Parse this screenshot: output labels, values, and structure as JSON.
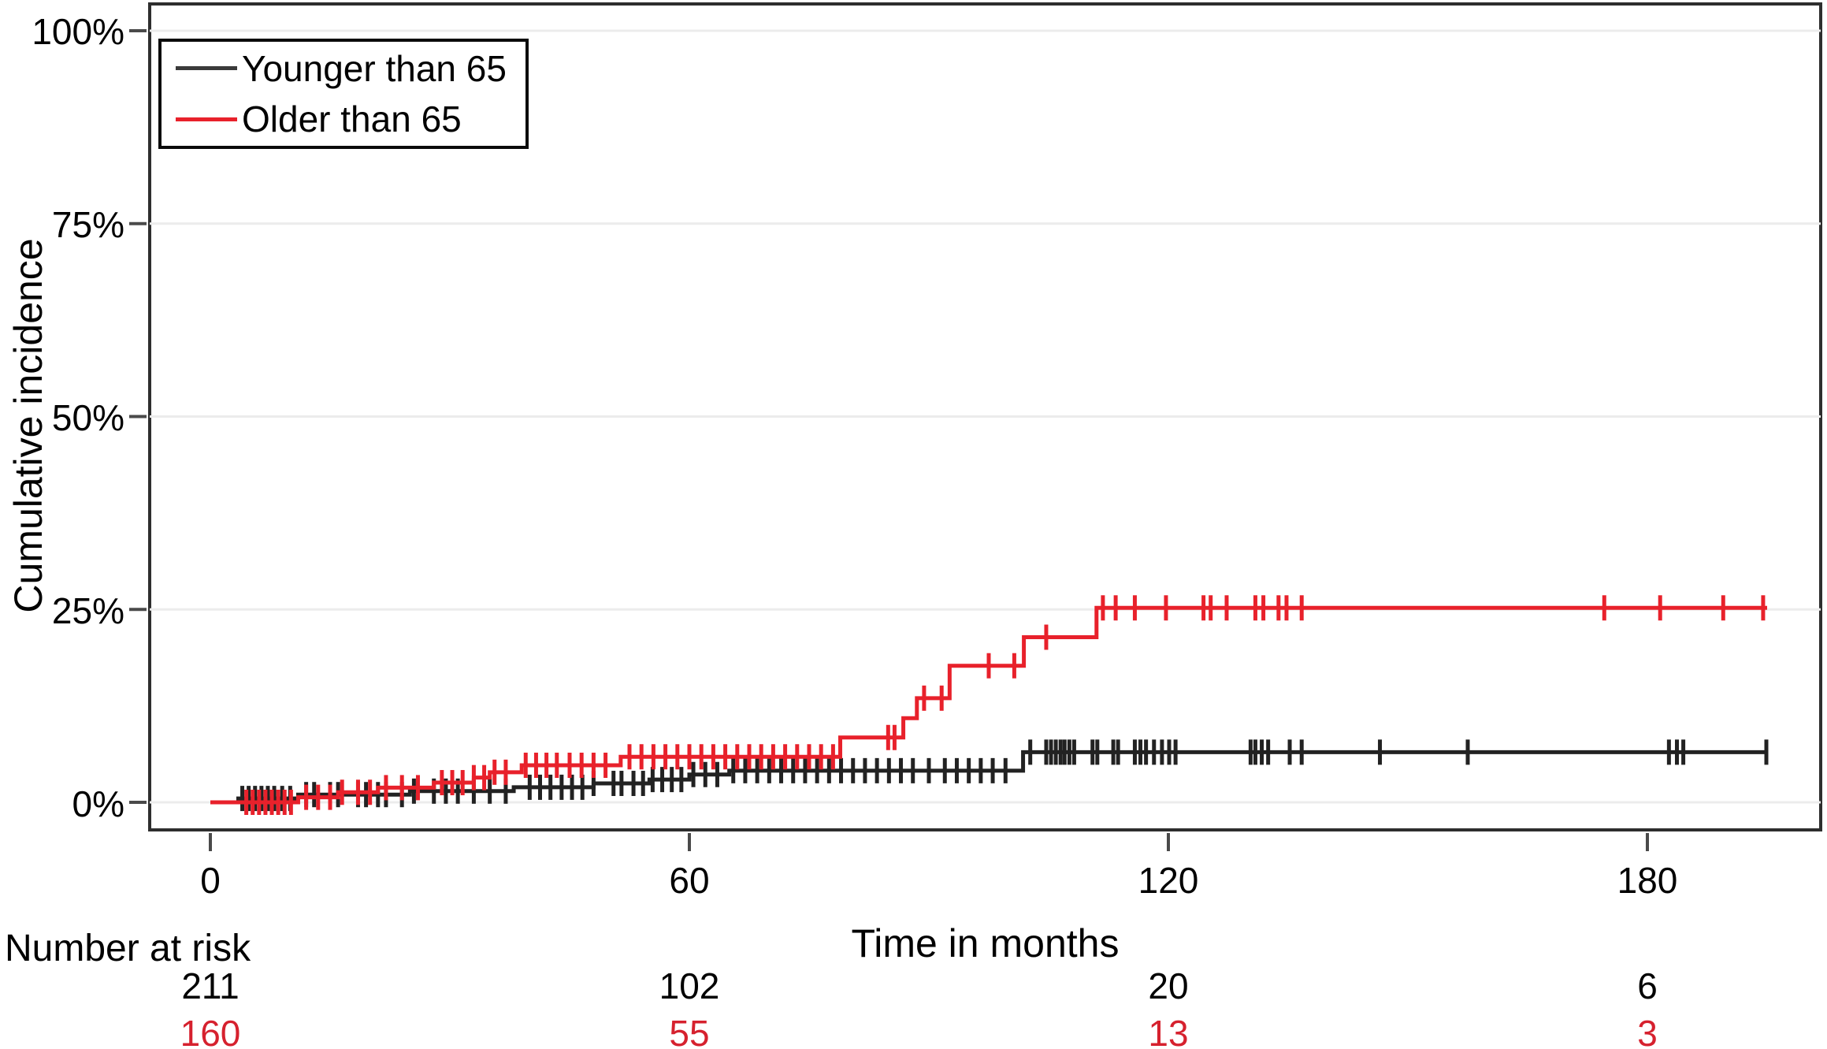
{
  "figure": {
    "background": "#ffffff"
  },
  "y_axis": {
    "title": "Cumulative incidence",
    "tick_labels": [
      "100%",
      "75%",
      "50%",
      "25%",
      "0%"
    ],
    "tick_percents": [
      100,
      75,
      50,
      25,
      0
    ]
  },
  "x_axis": {
    "title": "Time in months",
    "tick_labels": [
      "0",
      "60",
      "120",
      "180"
    ],
    "tick_months": [
      0,
      60,
      120,
      180
    ]
  },
  "legend": {
    "items": [
      {
        "label": "Younger than 65",
        "color": "#3a3a3a"
      },
      {
        "label": "Older than 65",
        "color": "#e8212b"
      }
    ]
  },
  "risk_table": {
    "title": "Number at risk",
    "times": [
      0,
      60,
      120,
      180
    ],
    "rows": [
      {
        "name": "Younger than 65",
        "color": "#000000",
        "values": [
          "211",
          "102",
          "20",
          "6"
        ]
      },
      {
        "name": "Older than 65",
        "color": "#d6212e",
        "values": [
          "160",
          "55",
          "13",
          "3"
        ]
      }
    ]
  },
  "chart_data": {
    "type": "line",
    "subtype": "kaplan-meier-cumulative-incidence-step",
    "title": "",
    "xlabel": "Time in months",
    "ylabel": "Cumulative incidence",
    "xlim_months": [
      0,
      202
    ],
    "ylim_percent": [
      0,
      100
    ],
    "x_ticks": [
      0,
      60,
      120,
      180
    ],
    "y_ticks_percent": [
      0,
      25,
      50,
      75,
      100
    ],
    "grid": true,
    "grid_color": "#ececec",
    "legend_position": "top-left",
    "series": [
      {
        "name": "Younger than 65",
        "color": "#222222",
        "end_month": 195,
        "steps": [
          [
            0,
            0
          ],
          [
            3.5,
            0.5
          ],
          [
            11,
            1.0
          ],
          [
            25,
            1.45
          ],
          [
            38,
            1.95
          ],
          [
            48,
            2.45
          ],
          [
            55,
            2.95
          ],
          [
            60,
            3.6
          ],
          [
            65,
            4.1
          ],
          [
            101.8,
            6.5
          ]
        ],
        "censor_months": [
          4,
          4.8,
          5.6,
          6.4,
          7.2,
          8,
          9,
          10,
          12,
          13,
          15,
          16,
          18.5,
          19.5,
          21,
          22,
          24,
          25.5,
          28,
          29.5,
          31,
          33,
          35,
          37,
          40,
          41.3,
          42.6,
          44,
          45.3,
          46.6,
          48,
          50.5,
          51.5,
          53,
          54.2,
          55.4,
          56.6,
          57.8,
          59,
          60.5,
          62,
          63.5,
          65.5,
          67,
          68.5,
          70,
          71.5,
          73,
          74.5,
          76,
          77.5,
          79,
          80.5,
          82,
          83.5,
          85,
          86.5,
          88,
          90,
          92,
          93.5,
          95,
          96.5,
          98,
          99.6,
          102.7,
          104.7,
          105.3,
          105.9,
          106.5,
          107,
          107.6,
          108.2,
          110.5,
          111.1,
          113.1,
          113.7,
          115.8,
          116.5,
          117.2,
          118.2,
          119.2,
          120.1,
          120.9,
          130.3,
          130.9,
          131.7,
          132.5,
          135.2,
          136.7,
          146.5,
          157.5,
          182.7,
          183.7,
          184.5,
          194.9
        ]
      },
      {
        "name": "Older than 65",
        "color": "#e8212b",
        "end_month": 195,
        "steps": [
          [
            0,
            0
          ],
          [
            11,
            0.65
          ],
          [
            16,
            1.3
          ],
          [
            21,
            1.9
          ],
          [
            28,
            2.55
          ],
          [
            33,
            3.2
          ],
          [
            35,
            3.9
          ],
          [
            39,
            4.8
          ],
          [
            51.4,
            5.9
          ],
          [
            78.9,
            8.4
          ],
          [
            86.8,
            10.9
          ],
          [
            88.5,
            13.5
          ],
          [
            92.6,
            17.7
          ],
          [
            101.9,
            21.4
          ],
          [
            111,
            25.2
          ]
        ],
        "censor_months": [
          4.5,
          5.3,
          6.1,
          6.9,
          7.7,
          8.5,
          9.3,
          10.1,
          12,
          13.5,
          15,
          16.5,
          18.5,
          20,
          22,
          24,
          26,
          29,
          30.3,
          31.6,
          33,
          34.3,
          35.6,
          37,
          39.5,
          40.8,
          42.1,
          43.4,
          45,
          46.5,
          48,
          49.5,
          52.5,
          54,
          55.5,
          57,
          58.5,
          60,
          61.5,
          63,
          64.5,
          66,
          67.5,
          69,
          70.5,
          72,
          73.5,
          75,
          76.5,
          78,
          84.9,
          85.7,
          89.4,
          91.6,
          97.5,
          100.7,
          104.7,
          111.8,
          113.4,
          115.8,
          119.7,
          124.4,
          125.3,
          127.3,
          130.9,
          131.9,
          133.8,
          134.8,
          136.7,
          174.6,
          181.6,
          189.5,
          194.5
        ]
      }
    ],
    "risk_table": {
      "label": "Number at risk",
      "times": [
        0,
        60,
        120,
        180
      ],
      "rows": [
        {
          "name": "Younger than 65",
          "values": [
            211,
            102,
            20,
            6
          ]
        },
        {
          "name": "Older than 65",
          "values": [
            160,
            55,
            13,
            3
          ]
        }
      ]
    }
  }
}
